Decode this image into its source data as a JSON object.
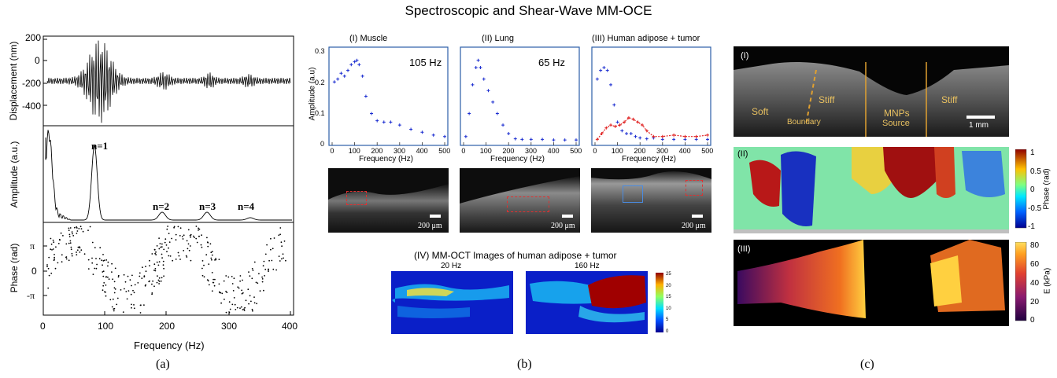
{
  "title": "Spectroscopic and Shear-Wave MM-OCE",
  "panel_a": {
    "caption": "(a)",
    "ylabel_top": "Displacement (nm)",
    "ylabel_mid": "Amplitude (a.u.)",
    "ylabel_bot": "Phase (rad)",
    "xlabel": "Frequency (Hz)",
    "yticks_top": [
      "200",
      "0",
      "-200",
      "-400"
    ],
    "yticks_bot": [
      "π",
      "0",
      "-π"
    ],
    "xticks": [
      "0",
      "100",
      "200",
      "300",
      "400"
    ],
    "harmonics": [
      "n=1",
      "n=2",
      "n=3",
      "n=4"
    ]
  },
  "panel_b": {
    "caption": "(b)",
    "plots": [
      {
        "title": "(I) Muscle",
        "freq_label": "105 Hz"
      },
      {
        "title": "(II) Lung",
        "freq_label": "65 Hz"
      },
      {
        "title": "(III) Human adipose + tumor",
        "freq_label": ""
      }
    ],
    "ylabel": "Amplitude (a.u)",
    "xlabel": "Frequency (Hz)",
    "yticks": [
      "0.3",
      "0.2",
      "0.1",
      "0"
    ],
    "xticks": [
      "0",
      "100",
      "200",
      "300",
      "400",
      "500"
    ],
    "scale_label": "200 μm",
    "mmoct_title": "(IV) MM-OCT Images of human adipose + tumor",
    "mmoct_labels": [
      "20 Hz",
      "160 Hz"
    ],
    "colorbar_ticks": [
      "25",
      "20",
      "15",
      "10",
      "5",
      "0"
    ]
  },
  "panel_c": {
    "caption": "(c)",
    "labels": [
      "(I)",
      "(II)",
      "(III)"
    ],
    "region_labels": [
      "Soft",
      "Stiff",
      "MNPs",
      "Source",
      "Stiff",
      "Boundary"
    ],
    "scale_label": "1 mm",
    "phase_label": "Phase (rad)",
    "phase_ticks": [
      "1",
      "0.5",
      "0",
      "-0.5",
      "-1"
    ],
    "e_label": "E (kPa)",
    "e_ticks": [
      "80",
      "60",
      "40",
      "20",
      "0"
    ]
  },
  "chart_data": [
    {
      "type": "line",
      "title": "",
      "xlabel": "Frequency (Hz)",
      "ylabel": "Amplitude (a.u.)",
      "xlim": [
        0,
        400
      ],
      "annotations": [
        "n=1",
        "n=2",
        "n=3",
        "n=4"
      ]
    },
    {
      "type": "scatter",
      "title": "(I) Muscle",
      "xlabel": "Frequency (Hz)",
      "ylabel": "Amplitude (a.u)",
      "xlim": [
        0,
        500
      ],
      "ylim": [
        0,
        0.32
      ],
      "annotation": "105 Hz",
      "series": [
        {
          "values_x": [
            10,
            25,
            40,
            55,
            70,
            85,
            100,
            110,
            120,
            135,
            150,
            175,
            200,
            230,
            260,
            300,
            350,
            400,
            450,
            500
          ],
          "values_y": [
            0.21,
            0.22,
            0.24,
            0.23,
            0.25,
            0.27,
            0.28,
            0.285,
            0.27,
            0.23,
            0.16,
            0.1,
            0.075,
            0.07,
            0.07,
            0.06,
            0.045,
            0.035,
            0.025,
            0.02
          ]
        }
      ]
    },
    {
      "type": "scatter",
      "title": "(II) Lung",
      "xlabel": "Frequency (Hz)",
      "xlim": [
        0,
        500
      ],
      "ylim": [
        0,
        0.32
      ],
      "annotation": "65 Hz",
      "series": [
        {
          "values_x": [
            10,
            25,
            40,
            55,
            65,
            75,
            90,
            110,
            130,
            150,
            175,
            200,
            230,
            260,
            300,
            350,
            400,
            450,
            500
          ],
          "values_y": [
            0.02,
            0.1,
            0.2,
            0.26,
            0.285,
            0.26,
            0.22,
            0.18,
            0.14,
            0.1,
            0.06,
            0.03,
            0.012,
            0.01,
            0.01,
            0.01,
            0.008,
            0.008,
            0.008
          ]
        }
      ]
    },
    {
      "type": "scatter",
      "title": "(III) Human adipose + tumor",
      "xlabel": "Frequency (Hz)",
      "xlim": [
        0,
        500
      ],
      "ylim": [
        0,
        0.32
      ],
      "series": [
        {
          "values_x": [
            10,
            25,
            40,
            55,
            70,
            85,
            100,
            120,
            140,
            160,
            180,
            200,
            230,
            260,
            300,
            350,
            400,
            450,
            500
          ],
          "values_y": [
            0.22,
            0.25,
            0.26,
            0.25,
            0.2,
            0.13,
            0.07,
            0.04,
            0.03,
            0.03,
            0.02,
            0.015,
            0.012,
            0.015,
            0.01,
            0.01,
            0.01,
            0.01,
            0.01
          ]
        },
        {
          "values_x": [
            10,
            30,
            50,
            70,
            90,
            110,
            130,
            150,
            170,
            190,
            210,
            230,
            260,
            300,
            350,
            400,
            450,
            500
          ],
          "values_y": [
            0.01,
            0.03,
            0.05,
            0.06,
            0.055,
            0.06,
            0.07,
            0.085,
            0.08,
            0.07,
            0.06,
            0.04,
            0.02,
            0.02,
            0.025,
            0.02,
            0.02,
            0.025
          ]
        }
      ]
    }
  ]
}
